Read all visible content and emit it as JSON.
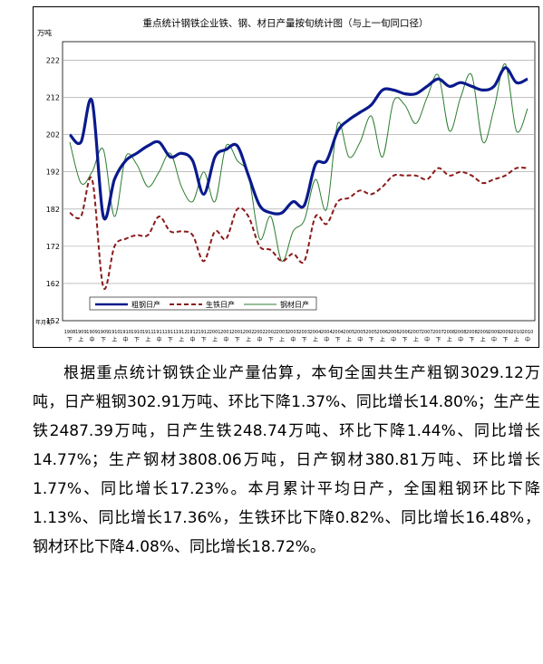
{
  "chart_data": {
    "type": "line",
    "title": "重点统计钢铁企业铁、钢、材日产量按旬统计图（与上一旬同口径）",
    "ylabel": "万吨",
    "xlabel": "年月旬",
    "ylim": [
      152,
      227
    ],
    "yticks": [
      152,
      162,
      172,
      182,
      192,
      202,
      212,
      222
    ],
    "grid": true,
    "legend_position": "bottom-left",
    "x_top_labels": [
      "1908",
      "1909",
      "1909",
      "1909",
      "1910",
      "1910",
      "1910",
      "1911",
      "1911",
      "1911",
      "1912",
      "1912",
      "1912",
      "2001",
      "2001",
      "2001",
      "2002",
      "2002",
      "2002",
      "2003",
      "2003",
      "2003",
      "2004",
      "2004",
      "2004",
      "2005",
      "2005",
      "2005",
      "2006",
      "2006",
      "2006",
      "2007",
      "2007",
      "2007",
      "2008",
      "2008",
      "2008",
      "2009",
      "2009",
      "2009",
      "2010",
      "2010"
    ],
    "x_bottom_labels": [
      "下",
      "上",
      "中",
      "下",
      "上",
      "中",
      "下",
      "上",
      "中",
      "下",
      "上",
      "中",
      "下",
      "上",
      "中",
      "下",
      "上",
      "中",
      "下",
      "上",
      "中",
      "下",
      "上",
      "中",
      "下",
      "上",
      "中",
      "下",
      "上",
      "中",
      "下",
      "上",
      "中",
      "下",
      "上",
      "中",
      "下",
      "上",
      "中",
      "下",
      "上",
      "中"
    ],
    "series": [
      {
        "name": "粗钢日产",
        "color": "#0a1a8c",
        "style": "solid-thick",
        "values": [
          202,
          200,
          211,
          180,
          190,
          195,
          197,
          199,
          200,
          196,
          197,
          195,
          186,
          196,
          198,
          199,
          191,
          183,
          181,
          181,
          184,
          183,
          194,
          195,
          203,
          206,
          208,
          210,
          214,
          214,
          213,
          213,
          215,
          217,
          215,
          216,
          215,
          214,
          215,
          220,
          216,
          217
        ]
      },
      {
        "name": "生铁日产",
        "color": "#8b1a1a",
        "style": "dashed",
        "values": [
          181,
          180,
          190,
          161,
          172,
          174,
          175,
          175,
          180,
          176,
          176,
          175,
          168,
          176,
          174,
          182,
          180,
          172,
          171,
          168,
          170,
          168,
          180,
          178,
          184,
          185,
          187,
          186,
          188,
          191,
          191,
          191,
          190,
          193,
          191,
          192,
          191,
          189,
          190,
          191,
          193,
          193
        ]
      },
      {
        "name": "钢材日产",
        "color": "#2e7d32",
        "style": "solid-thin",
        "values": [
          200,
          189,
          192,
          198,
          180,
          196,
          194,
          188,
          192,
          197,
          188,
          184,
          192,
          184,
          199,
          195,
          191,
          174,
          180,
          168,
          176,
          179,
          190,
          182,
          205,
          196,
          200,
          207,
          196,
          211,
          210,
          205,
          212,
          218,
          203,
          212,
          218,
          200,
          209,
          221,
          203,
          209
        ]
      }
    ]
  },
  "article": {
    "paragraph": "根据重点统计钢铁企业产量估算，本旬全国共生产粗钢3029.12万吨，日产粗钢302.91万吨、环比下降1.37%、同比增长14.80%；生产生铁2487.39万吨，日产生铁248.74万吨、环比下降1.44%、同比增长14.77%；生产钢材3808.06万吨，日产钢材380.81万吨、环比增长1.77%、同比增长17.23%。本月累计平均日产，全国粗钢环比下降1.13%、同比增长17.36%，生铁环比下降0.82%、同比增长16.48%，钢材环比下降4.08%、同比增长18.72%。"
  }
}
